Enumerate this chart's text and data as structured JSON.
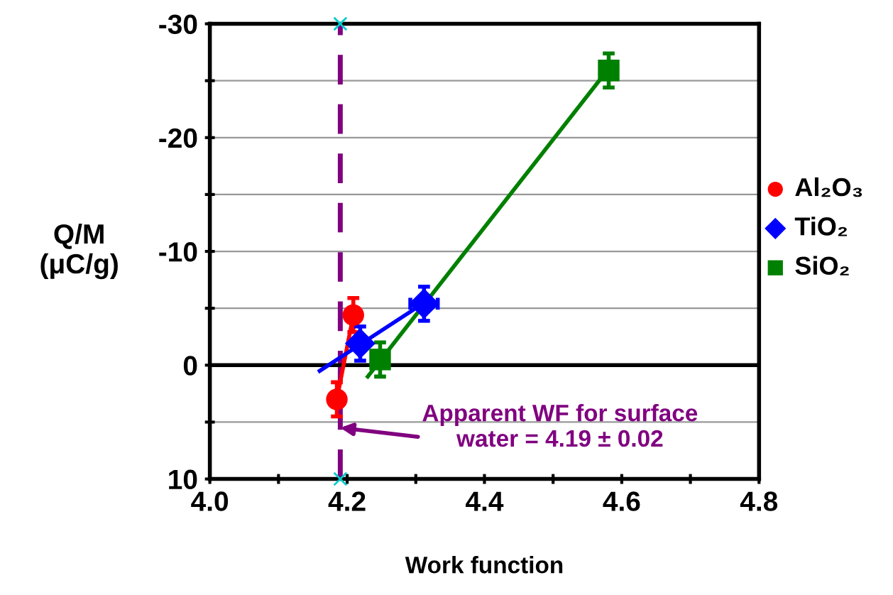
{
  "chart_data": {
    "type": "scatter",
    "xlabel": "Work function",
    "ylabel": "Q/M\n(μC/g)",
    "xlim": [
      4.0,
      4.8
    ],
    "ylim": [
      10,
      -30
    ],
    "xticks": [
      {
        "value": 4.0,
        "label": "4.0"
      },
      {
        "value": 4.1,
        "label": null
      },
      4.2,
      {
        "value": 4.3,
        "label": null
      },
      4.4,
      {
        "value": 4.5,
        "label": null
      },
      4.6,
      {
        "value": 4.7,
        "label": null
      },
      4.8
    ],
    "yticks": [
      -30,
      {
        "value": -25,
        "label": null
      },
      -20,
      {
        "value": -15,
        "label": null
      },
      -10,
      {
        "value": -5,
        "label": null
      },
      0,
      {
        "value": 5,
        "label": null
      },
      10
    ],
    "grid": "y",
    "legend": "right",
    "series": [
      {
        "name": "Al₂O₃",
        "color": "#ff0000",
        "marker": "circle",
        "x": [
          4.185,
          4.209
        ],
        "values": [
          3,
          -4.4
        ],
        "errors": [
          1.5,
          1.5
        ],
        "xerrors": [
          0.01,
          0.01
        ]
      },
      {
        "name": "TiO₂",
        "color": "#0000ff",
        "marker": "diamond",
        "x": [
          4.219,
          4.312
        ],
        "values": [
          -1.9,
          -5.4
        ],
        "errors": [
          1.5,
          1.5
        ],
        "xerrors": [
          0.01,
          0.02
        ]
      },
      {
        "name": "SiO₂",
        "color": "#008000",
        "marker": "square",
        "x": [
          4.248,
          4.581
        ],
        "values": [
          -0.5,
          -25.9
        ],
        "errors": [
          1.5,
          1.5
        ],
        "xerrors": [
          0.01,
          0.01
        ]
      },
      {
        "type": "line",
        "color": "#ff0000",
        "x": [
          4.185,
          4.209
        ],
        "values": [
          3,
          -4.4
        ]
      },
      {
        "type": "line",
        "color": "#0000ff",
        "x": [
          4.16,
          4.31
        ],
        "values": [
          0.5,
          -5.4
        ]
      },
      {
        "type": "line",
        "color": "#008000",
        "x": [
          4.23,
          4.58
        ],
        "values": [
          1,
          -26
        ]
      },
      {
        "color": "#00cccc",
        "marker": "cross",
        "x": [
          4.19,
          4.19
        ],
        "values": [
          -30,
          10
        ]
      }
    ],
    "ref_lines": [
      {
        "axis": "x",
        "value": 4.19,
        "color": "#800080",
        "line_style": "dashed"
      },
      {
        "axis": "y",
        "value": 0,
        "color": "#000000",
        "line_style": "solid"
      }
    ],
    "annotations": [
      {
        "text": "Apparent WF for surface\nwater = 4.19 ± 0.02",
        "x": 4.19,
        "y": 5.5
      }
    ]
  }
}
